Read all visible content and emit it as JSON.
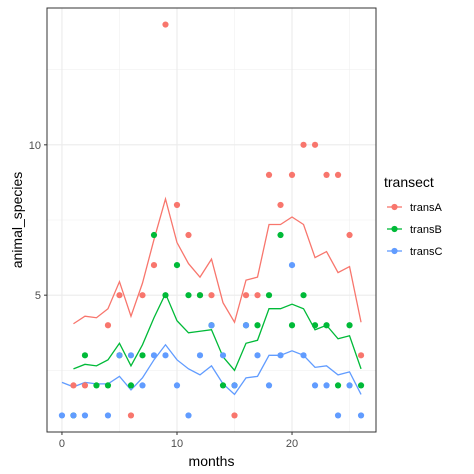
{
  "chart_data": {
    "type": "scatter",
    "xlabel": "months",
    "ylabel": "animal_species",
    "xlim": [
      -1.3,
      27.3
    ],
    "ylim": [
      0.45,
      14.55
    ],
    "x_ticks": [
      0,
      10,
      20
    ],
    "x_tick_labels": [
      "0",
      "10",
      "20"
    ],
    "y_ticks": [
      5,
      10
    ],
    "y_tick_labels": [
      "5",
      "10"
    ],
    "grid": true,
    "legend": {
      "title": "transect",
      "placement": "right",
      "entries": [
        "transA",
        "transB",
        "transC"
      ]
    },
    "series": [
      {
        "name": "transA",
        "color": "#F8766D",
        "points": [
          [
            1,
            2
          ],
          [
            2,
            2
          ],
          [
            4,
            4
          ],
          [
            5,
            5
          ],
          [
            6,
            1
          ],
          [
            7,
            5
          ],
          [
            8,
            6
          ],
          [
            9,
            14
          ],
          [
            10,
            8
          ],
          [
            11,
            7
          ],
          [
            12,
            5
          ],
          [
            13,
            5
          ],
          [
            15,
            1
          ],
          [
            16,
            5
          ],
          [
            17,
            5
          ],
          [
            18,
            9
          ],
          [
            19,
            8
          ],
          [
            20,
            9
          ],
          [
            21,
            10
          ],
          [
            22,
            10
          ],
          [
            23,
            9
          ],
          [
            24,
            9
          ],
          [
            25,
            7
          ],
          [
            26,
            3
          ]
        ],
        "line": [
          [
            1,
            4.05
          ],
          [
            2,
            4.3
          ],
          [
            3,
            4.25
          ],
          [
            4,
            4.55
          ],
          [
            5,
            5.45
          ],
          [
            6,
            4.3
          ],
          [
            7,
            5.4
          ],
          [
            8,
            6.85
          ],
          [
            9,
            8.2
          ],
          [
            10,
            6.75
          ],
          [
            11,
            6.05
          ],
          [
            12,
            5.6
          ],
          [
            13,
            6.2
          ],
          [
            14,
            4.75
          ],
          [
            15,
            4.1
          ],
          [
            16,
            5.5
          ],
          [
            17,
            5.6
          ],
          [
            18,
            7.35
          ],
          [
            19,
            7.35
          ],
          [
            20,
            7.6
          ],
          [
            21,
            7.35
          ],
          [
            22,
            6.25
          ],
          [
            23,
            6.45
          ],
          [
            24,
            5.75
          ],
          [
            25,
            5.95
          ],
          [
            26,
            4.1
          ]
        ]
      },
      {
        "name": "transB",
        "color": "#00BA38",
        "points": [
          [
            1,
            1
          ],
          [
            2,
            3
          ],
          [
            3,
            2
          ],
          [
            4,
            2
          ],
          [
            5,
            3
          ],
          [
            6,
            2
          ],
          [
            7,
            3
          ],
          [
            8,
            7
          ],
          [
            9,
            5
          ],
          [
            10,
            6
          ],
          [
            11,
            5
          ],
          [
            12,
            5
          ],
          [
            13,
            4
          ],
          [
            14,
            2
          ],
          [
            15,
            2
          ],
          [
            16,
            4
          ],
          [
            17,
            4
          ],
          [
            18,
            5
          ],
          [
            19,
            7
          ],
          [
            20,
            4
          ],
          [
            21,
            5
          ],
          [
            22,
            4
          ],
          [
            23,
            4
          ],
          [
            24,
            2
          ],
          [
            25,
            4
          ],
          [
            26,
            2
          ]
        ],
        "line": [
          [
            1,
            2.55
          ],
          [
            2,
            2.7
          ],
          [
            3,
            2.65
          ],
          [
            4,
            2.85
          ],
          [
            5,
            3.4
          ],
          [
            6,
            2.65
          ],
          [
            7,
            3.35
          ],
          [
            8,
            4.25
          ],
          [
            9,
            5.05
          ],
          [
            10,
            4.15
          ],
          [
            11,
            3.75
          ],
          [
            12,
            3.8
          ],
          [
            13,
            3.85
          ],
          [
            14,
            2.95
          ],
          [
            15,
            2.5
          ],
          [
            16,
            3.4
          ],
          [
            17,
            3.5
          ],
          [
            18,
            4.55
          ],
          [
            19,
            4.55
          ],
          [
            20,
            4.7
          ],
          [
            21,
            4.55
          ],
          [
            22,
            3.85
          ],
          [
            23,
            4.0
          ],
          [
            24,
            3.55
          ],
          [
            25,
            3.65
          ],
          [
            26,
            2.55
          ]
        ]
      },
      {
        "name": "transC",
        "color": "#619CFF",
        "points": [
          [
            0,
            1
          ],
          [
            1,
            1
          ],
          [
            2,
            1
          ],
          [
            4,
            1
          ],
          [
            5,
            3
          ],
          [
            6,
            3
          ],
          [
            7,
            2
          ],
          [
            8,
            3
          ],
          [
            9,
            3
          ],
          [
            10,
            2
          ],
          [
            11,
            1
          ],
          [
            12,
            3
          ],
          [
            13,
            4
          ],
          [
            14,
            3
          ],
          [
            15,
            2
          ],
          [
            16,
            4
          ],
          [
            17,
            3
          ],
          [
            18,
            2
          ],
          [
            19,
            3
          ],
          [
            20,
            6
          ],
          [
            21,
            3
          ],
          [
            22,
            2
          ],
          [
            23,
            2
          ],
          [
            24,
            1
          ],
          [
            25,
            2
          ],
          [
            26,
            1
          ]
        ],
        "line": [
          [
            0,
            2.1
          ],
          [
            1,
            1.95
          ],
          [
            2,
            2.1
          ],
          [
            3,
            2.05
          ],
          [
            4,
            2.05
          ],
          [
            5,
            2.3
          ],
          [
            6,
            1.85
          ],
          [
            7,
            2.25
          ],
          [
            8,
            2.85
          ],
          [
            9,
            3.35
          ],
          [
            10,
            2.85
          ],
          [
            11,
            2.55
          ],
          [
            12,
            2.35
          ],
          [
            13,
            2.65
          ],
          [
            14,
            2.05
          ],
          [
            15,
            1.7
          ],
          [
            16,
            2.25
          ],
          [
            17,
            2.3
          ],
          [
            18,
            3.0
          ],
          [
            19,
            3.0
          ],
          [
            20,
            3.15
          ],
          [
            21,
            3.0
          ],
          [
            22,
            2.6
          ],
          [
            23,
            2.65
          ],
          [
            24,
            2.35
          ],
          [
            25,
            2.45
          ],
          [
            26,
            1.7
          ]
        ]
      }
    ]
  }
}
